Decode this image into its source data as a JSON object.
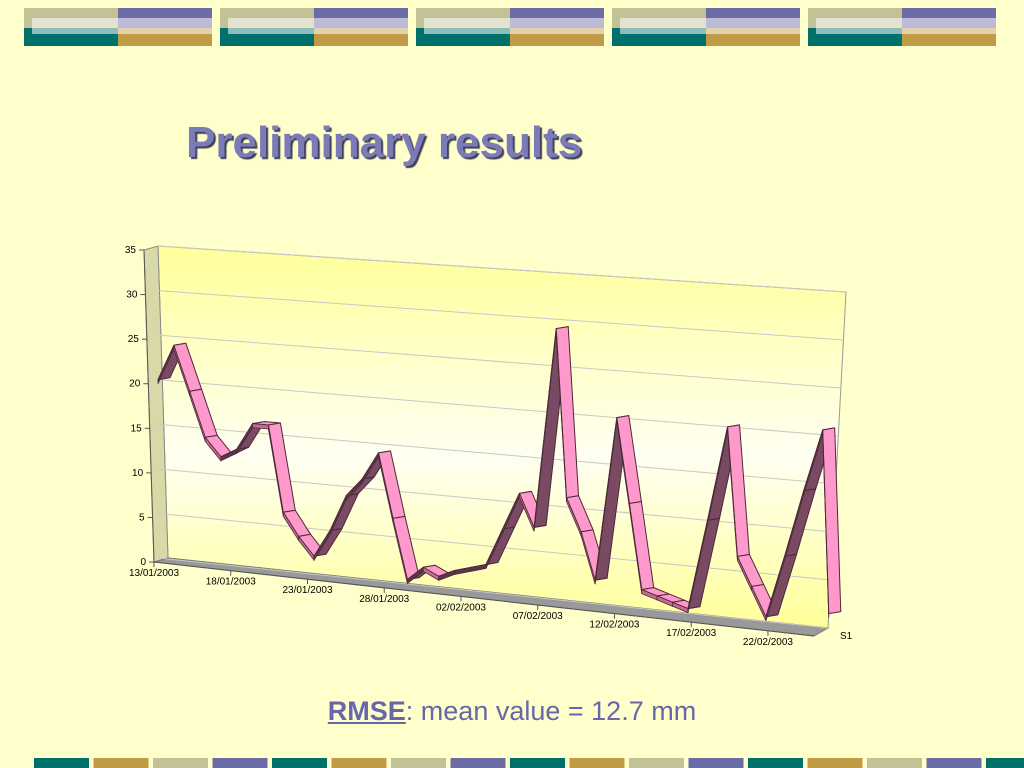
{
  "slide": {
    "title": "Preliminary results",
    "rmse_keyword": "RMSE",
    "rmse_text": ": mean value = 12.7 mm"
  },
  "colors": {
    "background": "#ffffcc",
    "title": "#7b7bb8",
    "ribbon_top": "#ff99cc",
    "ribbon_side": "#7a4a63",
    "deco_olive": "#c2c296",
    "deco_violet": "#6b6ba5",
    "deco_teal": "#00706b",
    "deco_gold": "#c09a45"
  },
  "chart_data": {
    "type": "line",
    "style": "3d-ribbon",
    "ylim": [
      0,
      35
    ],
    "yticks": [
      0,
      5,
      10,
      15,
      20,
      25,
      30,
      35
    ],
    "x_tick_labels": [
      "13/01/2003",
      "18/01/2003",
      "23/01/2003",
      "28/01/2003",
      "02/02/2003",
      "07/02/2003",
      "12/02/2003",
      "17/02/2003",
      "22/02/2003"
    ],
    "x_tick_every": 5,
    "grid": true,
    "series": [
      {
        "name": "S1",
        "x": [
          "13/01/2003",
          "14/01/2003",
          "15/01/2003",
          "16/01/2003",
          "17/01/2003",
          "18/01/2003",
          "19/01/2003",
          "20/01/2003",
          "21/01/2003",
          "22/01/2003",
          "23/01/2003",
          "24/01/2003",
          "25/01/2003",
          "26/01/2003",
          "27/01/2003",
          "28/01/2003",
          "29/01/2003",
          "30/01/2003",
          "31/01/2003",
          "01/02/2003",
          "02/02/2003",
          "03/02/2003",
          "04/02/2003",
          "05/02/2003",
          "06/02/2003",
          "07/02/2003",
          "08/02/2003",
          "09/02/2003",
          "10/02/2003",
          "11/02/2003",
          "12/02/2003",
          "13/02/2003",
          "14/02/2003",
          "15/02/2003",
          "16/02/2003",
          "17/02/2003",
          "18/02/2003",
          "19/02/2003",
          "20/02/2003",
          "21/02/2003",
          "22/02/2003",
          "23/02/2003",
          "24/02/2003",
          "25/02/2003"
        ],
        "values": [
          20,
          24,
          19,
          14,
          12,
          13,
          16,
          16,
          6.5,
          4,
          2,
          5,
          9,
          11,
          14,
          7,
          0.5,
          2,
          1.2,
          2,
          2.5,
          3,
          7,
          11,
          7.5,
          29,
          11,
          7.5,
          2.5,
          20,
          11,
          2,
          1.5,
          1,
          0.5,
          10,
          20,
          6.5,
          3.5,
          0.5,
          7,
          14,
          20.5,
          1.5
        ]
      }
    ]
  }
}
